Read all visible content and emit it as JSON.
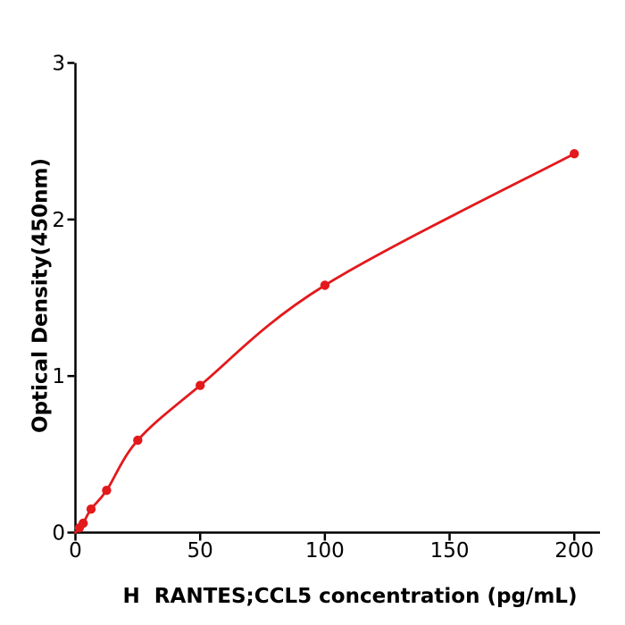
{
  "figure": {
    "background": "#ffffff"
  },
  "chart_data": {
    "type": "scatter",
    "title": "",
    "xlabel": "H  RANTES;CCL5 concentration (pg/mL)",
    "ylabel": "Optical Density(450nm)",
    "x": [
      1.5625,
      3.125,
      6.25,
      12.5,
      25,
      50,
      100,
      200
    ],
    "y": [
      0.03,
      0.06,
      0.15,
      0.27,
      0.59,
      0.94,
      1.58,
      2.42
    ],
    "curve_origin": [
      0,
      0
    ],
    "xticks": [
      0,
      50,
      100,
      150,
      200
    ],
    "yticks": [
      0,
      1,
      2,
      3
    ],
    "xlim": [
      0,
      210
    ],
    "ylim": [
      0,
      3
    ],
    "grid": false,
    "legend": null,
    "has_fit_curve": true,
    "axis_color": "#000000",
    "line_color": "#e3191c",
    "marker_color": "#e3191c"
  }
}
